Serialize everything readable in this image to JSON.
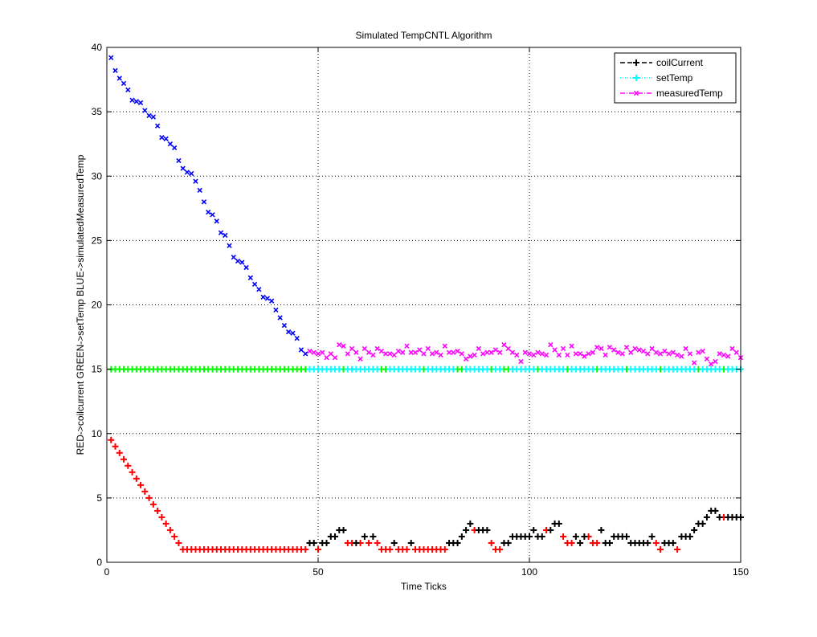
{
  "chart_data": {
    "type": "scatter",
    "title": "Simulated TempCNTL Algorithm",
    "xlabel": "Time Ticks",
    "ylabel": "RED->coilcurrent  GREEN->setTemp  BLUE->simulatedMeasuredTemp",
    "xlim": [
      0,
      150
    ],
    "ylim": [
      0,
      40
    ],
    "x_ticks": [
      "0",
      "50",
      "100",
      "150"
    ],
    "y_ticks": [
      "0",
      "5",
      "10",
      "15",
      "20",
      "25",
      "30",
      "35",
      "40"
    ],
    "grid": true,
    "legend_position": "top-right",
    "legend": [
      {
        "label": "coilCurrent",
        "color": "#000000",
        "marker": "plus",
        "line": "dashed"
      },
      {
        "label": "setTemp",
        "color": "#00ffff",
        "marker": "plus",
        "line": "dotted"
      },
      {
        "label": "measuredTemp",
        "color": "#ff00ff",
        "marker": "x",
        "line": "dashdot"
      }
    ],
    "series": [
      {
        "color": "#0000ff",
        "marker": "x",
        "x": [
          1,
          2,
          3,
          4,
          5,
          6,
          7,
          8,
          9,
          10,
          11,
          12,
          13,
          14,
          15,
          16,
          17,
          18,
          19,
          20,
          21,
          22,
          23,
          24,
          25,
          26,
          27,
          28,
          29,
          30,
          31,
          32,
          33,
          34,
          35,
          36,
          37,
          38,
          39,
          40,
          41,
          42,
          43,
          44,
          45,
          46,
          47
        ],
        "y": [
          39.2,
          38.2,
          37.6,
          37.2,
          36.7,
          35.9,
          35.8,
          35.7,
          35.1,
          34.7,
          34.6,
          33.9,
          33.0,
          32.9,
          32.5,
          32.2,
          31.2,
          30.6,
          30.3,
          30.2,
          29.6,
          28.9,
          28.0,
          27.2,
          27.0,
          26.5,
          25.6,
          25.4,
          24.6,
          23.7,
          23.4,
          23.3,
          22.9,
          22.1,
          21.6,
          21.2,
          20.6,
          20.5,
          20.3,
          19.6,
          19.0,
          18.4,
          17.9,
          17.8,
          17.4,
          16.5,
          16.2
        ]
      },
      {
        "color": "#ff00ff",
        "marker": "x",
        "x": [
          48,
          49,
          50,
          51,
          52,
          53,
          54,
          55,
          56,
          57,
          58,
          59,
          60,
          61,
          62,
          63,
          64,
          65,
          66,
          67,
          68,
          69,
          70,
          71,
          72,
          73,
          74,
          75,
          76,
          77,
          78,
          79,
          80,
          81,
          82,
          83,
          84,
          85,
          86,
          87,
          88,
          89,
          90,
          91,
          92,
          93,
          94,
          95,
          96,
          97,
          98,
          99,
          100,
          101,
          102,
          103,
          104,
          105,
          106,
          107,
          108,
          109,
          110,
          111,
          112,
          113,
          114,
          115,
          116,
          117,
          118,
          119,
          120,
          121,
          122,
          123,
          124,
          125,
          126,
          127,
          128,
          129,
          130,
          131,
          132,
          133,
          134,
          135,
          136,
          137,
          138,
          139,
          140,
          141,
          142,
          143,
          144,
          145,
          146,
          147,
          148,
          149,
          150
        ],
        "y": [
          16.4,
          16.3,
          16.2,
          16.3,
          15.9,
          16.2,
          15.9,
          16.9,
          16.8,
          16.2,
          16.6,
          16.3,
          15.8,
          16.6,
          16.3,
          16.1,
          16.6,
          16.4,
          16.2,
          16.2,
          16.1,
          16.4,
          16.3,
          16.8,
          16.3,
          16.3,
          16.5,
          16.2,
          16.6,
          16.2,
          16.3,
          16.1,
          16.8,
          16.3,
          16.3,
          16.4,
          16.2,
          15.8,
          16.0,
          16.1,
          16.6,
          16.2,
          16.3,
          16.3,
          16.5,
          16.3,
          16.9,
          16.6,
          16.3,
          16.1,
          15.6,
          16.3,
          16.2,
          16.1,
          16.3,
          16.2,
          16.1,
          16.9,
          16.5,
          16.1,
          16.6,
          16.1,
          16.8,
          16.2,
          16.2,
          16.0,
          16.2,
          16.3,
          16.7,
          16.6,
          16.1,
          16.7,
          16.5,
          16.3,
          16.2,
          16.7,
          16.3,
          16.6,
          16.5,
          16.4,
          16.2,
          16.6,
          16.3,
          16.2,
          16.4,
          16.2,
          16.3,
          16.1,
          16.0,
          16.6,
          16.2,
          15.5,
          16.3,
          16.4,
          15.8,
          15.4,
          15.6,
          16.2,
          16.1,
          16.0,
          16.6,
          16.3,
          15.9
        ]
      },
      {
        "color": "#00ff00",
        "marker": "plus",
        "x": [
          1,
          2,
          3,
          4,
          5,
          6,
          7,
          8,
          9,
          10,
          11,
          12,
          13,
          14,
          15,
          16,
          17,
          18,
          19,
          20,
          21,
          22,
          23,
          24,
          25,
          26,
          27,
          28,
          29,
          30,
          31,
          32,
          33,
          34,
          35,
          36,
          37,
          38,
          39,
          40,
          41,
          42,
          43,
          44,
          45,
          46,
          47,
          56,
          65,
          66,
          75,
          83,
          84,
          91,
          94,
          95,
          102,
          109,
          116,
          123,
          131,
          140,
          146
        ],
        "y": [
          15,
          15,
          15,
          15,
          15,
          15,
          15,
          15,
          15,
          15,
          15,
          15,
          15,
          15,
          15,
          15,
          15,
          15,
          15,
          15,
          15,
          15,
          15,
          15,
          15,
          15,
          15,
          15,
          15,
          15,
          15,
          15,
          15,
          15,
          15,
          15,
          15,
          15,
          15,
          15,
          15,
          15,
          15,
          15,
          15,
          15,
          15,
          15,
          15,
          15,
          15,
          15,
          15,
          15,
          15,
          15,
          15,
          15,
          15,
          15,
          15,
          15,
          15
        ]
      },
      {
        "color": "#00ffff",
        "marker": "plus",
        "x": [
          48,
          49,
          50,
          51,
          52,
          53,
          54,
          55,
          57,
          58,
          59,
          60,
          61,
          62,
          63,
          64,
          67,
          68,
          69,
          70,
          71,
          72,
          73,
          74,
          76,
          77,
          78,
          79,
          80,
          81,
          82,
          85,
          86,
          87,
          88,
          89,
          90,
          92,
          93,
          96,
          97,
          98,
          99,
          100,
          101,
          103,
          104,
          105,
          106,
          107,
          108,
          110,
          111,
          112,
          113,
          114,
          115,
          117,
          118,
          119,
          120,
          121,
          122,
          124,
          125,
          126,
          127,
          128,
          129,
          130,
          132,
          133,
          134,
          135,
          136,
          137,
          138,
          139,
          141,
          142,
          143,
          144,
          145,
          147,
          148,
          149,
          150
        ],
        "y": [
          15,
          15,
          15,
          15,
          15,
          15,
          15,
          15,
          15,
          15,
          15,
          15,
          15,
          15,
          15,
          15,
          15,
          15,
          15,
          15,
          15,
          15,
          15,
          15,
          15,
          15,
          15,
          15,
          15,
          15,
          15,
          15,
          15,
          15,
          15,
          15,
          15,
          15,
          15,
          15,
          15,
          15,
          15,
          15,
          15,
          15,
          15,
          15,
          15,
          15,
          15,
          15,
          15,
          15,
          15,
          15,
          15,
          15,
          15,
          15,
          15,
          15,
          15,
          15,
          15,
          15,
          15,
          15,
          15,
          15,
          15,
          15,
          15,
          15,
          15,
          15,
          15,
          15,
          15,
          15,
          15,
          15,
          15,
          15,
          15,
          15,
          15
        ]
      },
      {
        "color": "#ff0000",
        "marker": "plus",
        "x": [
          1,
          2,
          3,
          4,
          5,
          6,
          7,
          8,
          9,
          10,
          11,
          12,
          13,
          14,
          15,
          16,
          17,
          18,
          19,
          20,
          21,
          22,
          23,
          24,
          25,
          26,
          27,
          28,
          29,
          30,
          31,
          32,
          33,
          34,
          35,
          36,
          37,
          38,
          39,
          40,
          41,
          42,
          43,
          44,
          45,
          46,
          47,
          50,
          57,
          58,
          60,
          62,
          64,
          65,
          66,
          67,
          69,
          70,
          71,
          73,
          74,
          75,
          76,
          77,
          78,
          79,
          80,
          87,
          91,
          92,
          93,
          104,
          108,
          109,
          110,
          114,
          115,
          116,
          130,
          131,
          135,
          146
        ],
        "y": [
          9.5,
          9.0,
          8.5,
          8.0,
          7.5,
          7.0,
          6.5,
          6.0,
          5.5,
          5.0,
          4.5,
          4.0,
          3.5,
          3.0,
          2.5,
          2.0,
          1.5,
          1.0,
          1,
          1,
          1,
          1,
          1,
          1,
          1,
          1,
          1,
          1,
          1,
          1,
          1,
          1,
          1,
          1,
          1,
          1,
          1,
          1,
          1,
          1,
          1,
          1,
          1,
          1,
          1,
          1,
          1,
          1.0,
          1.5,
          1.5,
          1.5,
          1.5,
          1.5,
          1.0,
          1.0,
          1.0,
          1.0,
          1.0,
          1.0,
          1.0,
          1.0,
          1.0,
          1.0,
          1.0,
          1.0,
          1.0,
          1.0,
          2.5,
          1.5,
          1.0,
          1.0,
          2.5,
          2.0,
          1.5,
          1.5,
          2.0,
          1.5,
          1.5,
          1.5,
          1.0,
          1.0,
          3.5
        ]
      },
      {
        "color": "#000000",
        "marker": "plus",
        "x": [
          48,
          49,
          51,
          52,
          53,
          54,
          55,
          56,
          59,
          61,
          63,
          68,
          72,
          81,
          82,
          83,
          84,
          85,
          86,
          88,
          89,
          90,
          94,
          95,
          96,
          97,
          98,
          99,
          100,
          101,
          102,
          103,
          105,
          106,
          107,
          111,
          112,
          113,
          117,
          118,
          119,
          120,
          121,
          122,
          123,
          124,
          125,
          126,
          127,
          128,
          129,
          132,
          133,
          134,
          136,
          137,
          138,
          139,
          140,
          141,
          142,
          143,
          144,
          145,
          147,
          148,
          149,
          150
        ],
        "y": [
          1.5,
          1.5,
          1.5,
          1.5,
          2.0,
          2.0,
          2.5,
          2.5,
          1.5,
          2.0,
          2.0,
          1.5,
          1.5,
          1.5,
          1.5,
          1.5,
          2.0,
          2.5,
          3.0,
          2.5,
          2.5,
          2.5,
          1.5,
          1.5,
          2.0,
          2.0,
          2.0,
          2.0,
          2.0,
          2.5,
          2.0,
          2.0,
          2.5,
          3.0,
          3.0,
          2.0,
          1.5,
          2.0,
          2.5,
          1.5,
          1.5,
          2.0,
          2.0,
          2.0,
          2.0,
          1.5,
          1.5,
          1.5,
          1.5,
          1.5,
          2.0,
          1.5,
          1.5,
          1.5,
          2.0,
          2.0,
          2.0,
          2.5,
          3.0,
          3.0,
          3.5,
          4.0,
          4.0,
          3.5,
          3.5,
          3.5,
          3.5,
          3.5
        ]
      }
    ]
  }
}
